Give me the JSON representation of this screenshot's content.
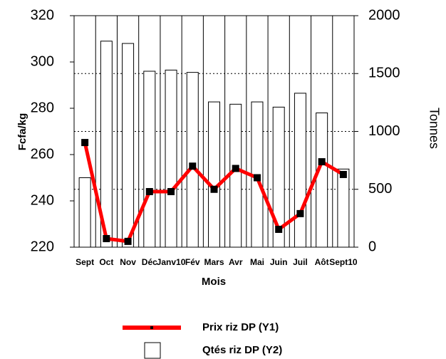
{
  "chart_data": {
    "type": "bar-line",
    "xlabel": "Mois",
    "ylabel": "Fcfa/kg",
    "y2label": "Tonnes",
    "categories": [
      "Sept",
      "Oct",
      "Nov",
      "Déc",
      "Janv10",
      "Fév",
      "Mars",
      "Avr",
      "Mai",
      "Juin",
      "Juil",
      "Aôt",
      "Sept10"
    ],
    "series": [
      {
        "name": "Qtés riz DP (Y2)",
        "type": "bar",
        "axis": "y2",
        "color": "#ffffff",
        "values": [
          600,
          1780,
          1760,
          1520,
          1530,
          1510,
          1255,
          1235,
          1255,
          1210,
          1330,
          1160,
          675
        ]
      },
      {
        "name": "Prix riz DP (Y1)",
        "type": "line",
        "axis": "y",
        "color": "#ff0000",
        "values": [
          265.2,
          223.7,
          222.5,
          244,
          244,
          255,
          245,
          254,
          250,
          227.7,
          234.5,
          256.9,
          251.4
        ]
      }
    ],
    "ylim": [
      220,
      320
    ],
    "yticks": [
      220,
      240,
      260,
      280,
      300,
      320
    ],
    "y2lim": [
      0,
      2000
    ],
    "y2ticks": [
      0,
      500,
      1000,
      1500,
      2000
    ],
    "grid": true
  }
}
